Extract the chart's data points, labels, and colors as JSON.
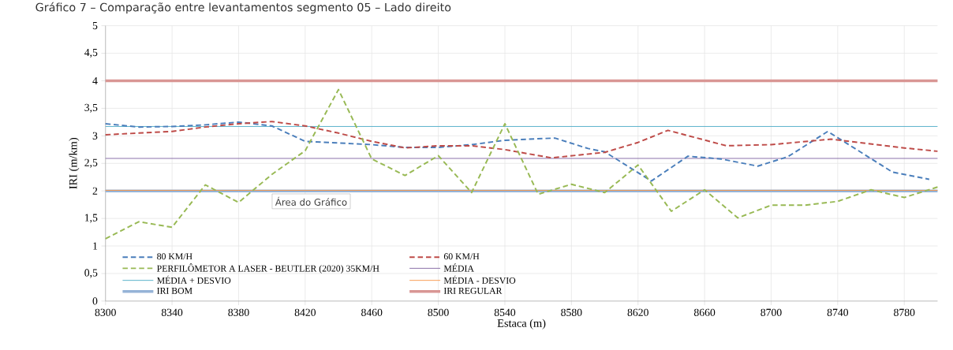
{
  "chart_data": {
    "type": "line",
    "title": "Gráfico 7 – Comparação entre levantamentos segmento 05 – Lado direito",
    "xlabel": "Estaca (m)",
    "ylabel": "IRI (m/km)",
    "annotations": [
      "Área do Gráfico"
    ],
    "xlim": [
      8300,
      8800
    ],
    "xticks": [
      8300,
      8340,
      8380,
      8420,
      8460,
      8500,
      8540,
      8580,
      8620,
      8660,
      8700,
      8740,
      8780
    ],
    "ylim": [
      0,
      5
    ],
    "yticks": [
      0,
      {
        "value": 0.5,
        "label": "0,5"
      },
      1,
      {
        "value": 1.5,
        "label": "1,5"
      },
      2,
      {
        "value": 2.5,
        "label": "2,5"
      },
      3,
      {
        "value": 3.5,
        "label": "3,5"
      },
      4,
      {
        "value": 4.5,
        "label": "4,5"
      },
      5
    ],
    "grid": true,
    "legend": "bottom",
    "marker": "none",
    "line_style": "dashed",
    "series": [
      {
        "name": "80 KM/H",
        "color": "#4a7ebb",
        "x": [
          8300,
          8320,
          8340,
          8360,
          8380,
          8400,
          8420,
          8440,
          8460,
          8480,
          8500,
          8520,
          8540,
          8570,
          8590,
          8600,
          8628,
          8650,
          8670,
          8692,
          8710,
          8734,
          8773,
          8795
        ],
        "values": [
          3.22,
          3.16,
          3.17,
          3.2,
          3.25,
          3.18,
          2.9,
          2.87,
          2.84,
          2.79,
          2.79,
          2.84,
          2.92,
          2.96,
          2.77,
          2.71,
          2.18,
          2.63,
          2.58,
          2.45,
          2.62,
          3.08,
          2.34,
          2.21
        ]
      },
      {
        "name": "60 KM/H",
        "color": "#be4b48",
        "x": [
          8300,
          8320,
          8340,
          8360,
          8380,
          8400,
          8420,
          8440,
          8460,
          8480,
          8500,
          8520,
          8540,
          8568,
          8600,
          8620,
          8638,
          8673,
          8700,
          8736,
          8780,
          8800
        ],
        "values": [
          3.02,
          3.05,
          3.08,
          3.16,
          3.22,
          3.26,
          3.18,
          3.05,
          2.9,
          2.78,
          2.82,
          2.82,
          2.75,
          2.6,
          2.7,
          2.88,
          3.1,
          2.82,
          2.84,
          2.94,
          2.78,
          2.72
        ]
      },
      {
        "name": "PERFILÔMETOR A LASER - BEUTLER (2020) 35KM/H",
        "color": "#98b954",
        "x": [
          8300,
          8320,
          8340,
          8360,
          8380,
          8400,
          8420,
          8440,
          8460,
          8480,
          8500,
          8520,
          8540,
          8560,
          8580,
          8600,
          8620,
          8640,
          8660,
          8680,
          8700,
          8720,
          8740,
          8760,
          8780,
          8800
        ],
        "values": [
          1.13,
          1.44,
          1.34,
          2.11,
          1.79,
          2.3,
          2.73,
          3.84,
          2.58,
          2.28,
          2.64,
          1.97,
          3.22,
          1.94,
          2.12,
          1.97,
          2.47,
          1.63,
          2.02,
          1.51,
          1.74,
          1.74,
          1.81,
          2.02,
          1.88,
          2.07
        ]
      }
    ],
    "ref_lines": [
      {
        "axis": "y",
        "value": 2.59,
        "label": "MÉDIA",
        "color": "#8064a2"
      },
      {
        "axis": "y",
        "value": 3.17,
        "label": "MÉDIA + DESVIO",
        "color": "#4bacc6"
      },
      {
        "axis": "y",
        "value": 2.01,
        "label": "MÉDIA - DESVIO",
        "color": "#f79646"
      },
      {
        "axis": "y",
        "value": 2,
        "label": "IRI BOM",
        "color": "#95b3d7"
      },
      {
        "axis": "y",
        "value": 4,
        "label": "IRI REGULAR",
        "color": "#d99694"
      }
    ]
  }
}
